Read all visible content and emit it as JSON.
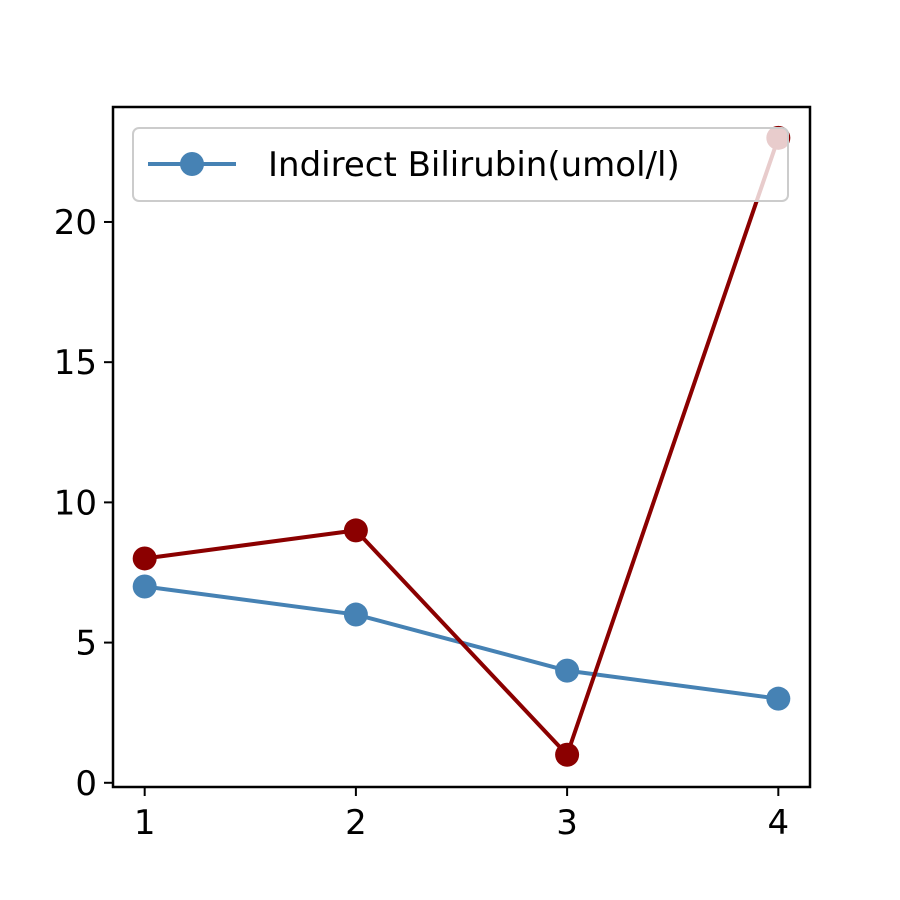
{
  "chart_data": {
    "type": "line",
    "title": "",
    "xlabel": "",
    "ylabel": "",
    "x": [
      1,
      2,
      3,
      4
    ],
    "xlim": [
      0.85,
      4.15
    ],
    "ylim": [
      -0.15,
      24.1
    ],
    "xticks": [
      1,
      2,
      3,
      4
    ],
    "yticks": [
      0,
      5,
      10,
      15,
      20
    ],
    "grid": false,
    "legend_position": "top",
    "series": [
      {
        "name": "Indirect Bilirubin(umol/l)",
        "color": "#4682b4",
        "marker": "circle",
        "values": [
          7,
          6,
          4,
          3
        ]
      },
      {
        "name": "",
        "color": "#8b0000",
        "marker": "circle",
        "values": [
          8,
          9,
          1,
          23
        ]
      }
    ]
  }
}
